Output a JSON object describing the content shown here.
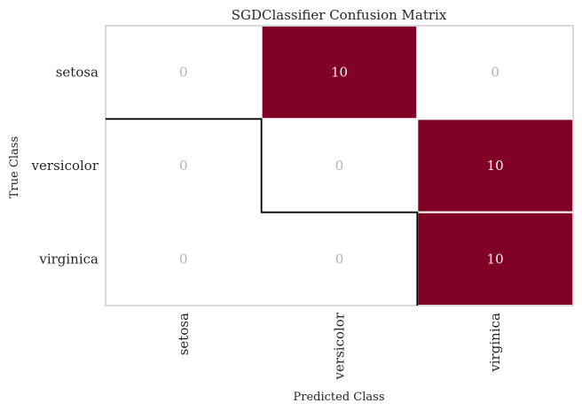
{
  "chart_data": {
    "type": "heatmap",
    "title": "SGDClassifier Confusion Matrix",
    "xlabel": "Predicted Class",
    "ylabel": "True Class",
    "rows": [
      "setosa",
      "versicolor",
      "virginica"
    ],
    "columns": [
      "setosa",
      "versicolor",
      "virginica"
    ],
    "values": [
      [
        0,
        10,
        0
      ],
      [
        0,
        0,
        10
      ],
      [
        0,
        0,
        10
      ]
    ],
    "colors": {
      "filled": "#800026",
      "zero": "#ffffff",
      "zero_text": "#b3b3b3",
      "filled_text": "#ffffff",
      "diagonal_border": "#000000",
      "frame": "#cccccc"
    },
    "grid": false
  }
}
